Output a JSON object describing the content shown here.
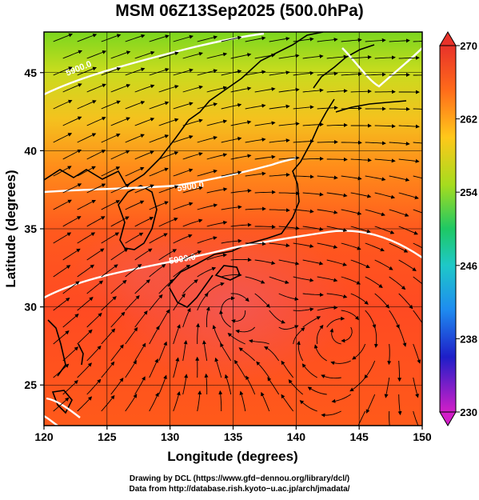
{
  "title": "MSM 06Z13Sep2025 (500.0hPa)",
  "map": {
    "x_axis": {
      "label": "Longitude (degrees)",
      "range": [
        120,
        150
      ],
      "ticks": [
        "120",
        "125",
        "130",
        "135",
        "140",
        "145",
        "150"
      ]
    },
    "y_axis": {
      "label": "Latitude (degrees)",
      "range": [
        22.4,
        47.6
      ],
      "ticks": [
        "25",
        "30",
        "35",
        "40",
        "45"
      ]
    },
    "contour_labels": [
      "5900.0",
      "5900.0",
      "5900.0"
    ],
    "field_colors": {
      "warm_core": "#ef4a3a",
      "warm": "#ff5a1e",
      "mid": "#ff8c1a",
      "cool": "#f6c81e",
      "coolest": "#66d21e"
    },
    "overlay_color": "#000000",
    "contour_color": "#ffffff"
  },
  "colorbar": {
    "ticks": [
      "230",
      "238",
      "246",
      "254",
      "262",
      "270"
    ],
    "range": [
      230,
      270
    ]
  },
  "credits": {
    "line1": "Drawing by DCL (https://www.gfd−dennou.org/library/dcl/)",
    "line2": "Data from http://database.rish.kyoto−u.ac.jp/arch/jmadata/"
  }
}
